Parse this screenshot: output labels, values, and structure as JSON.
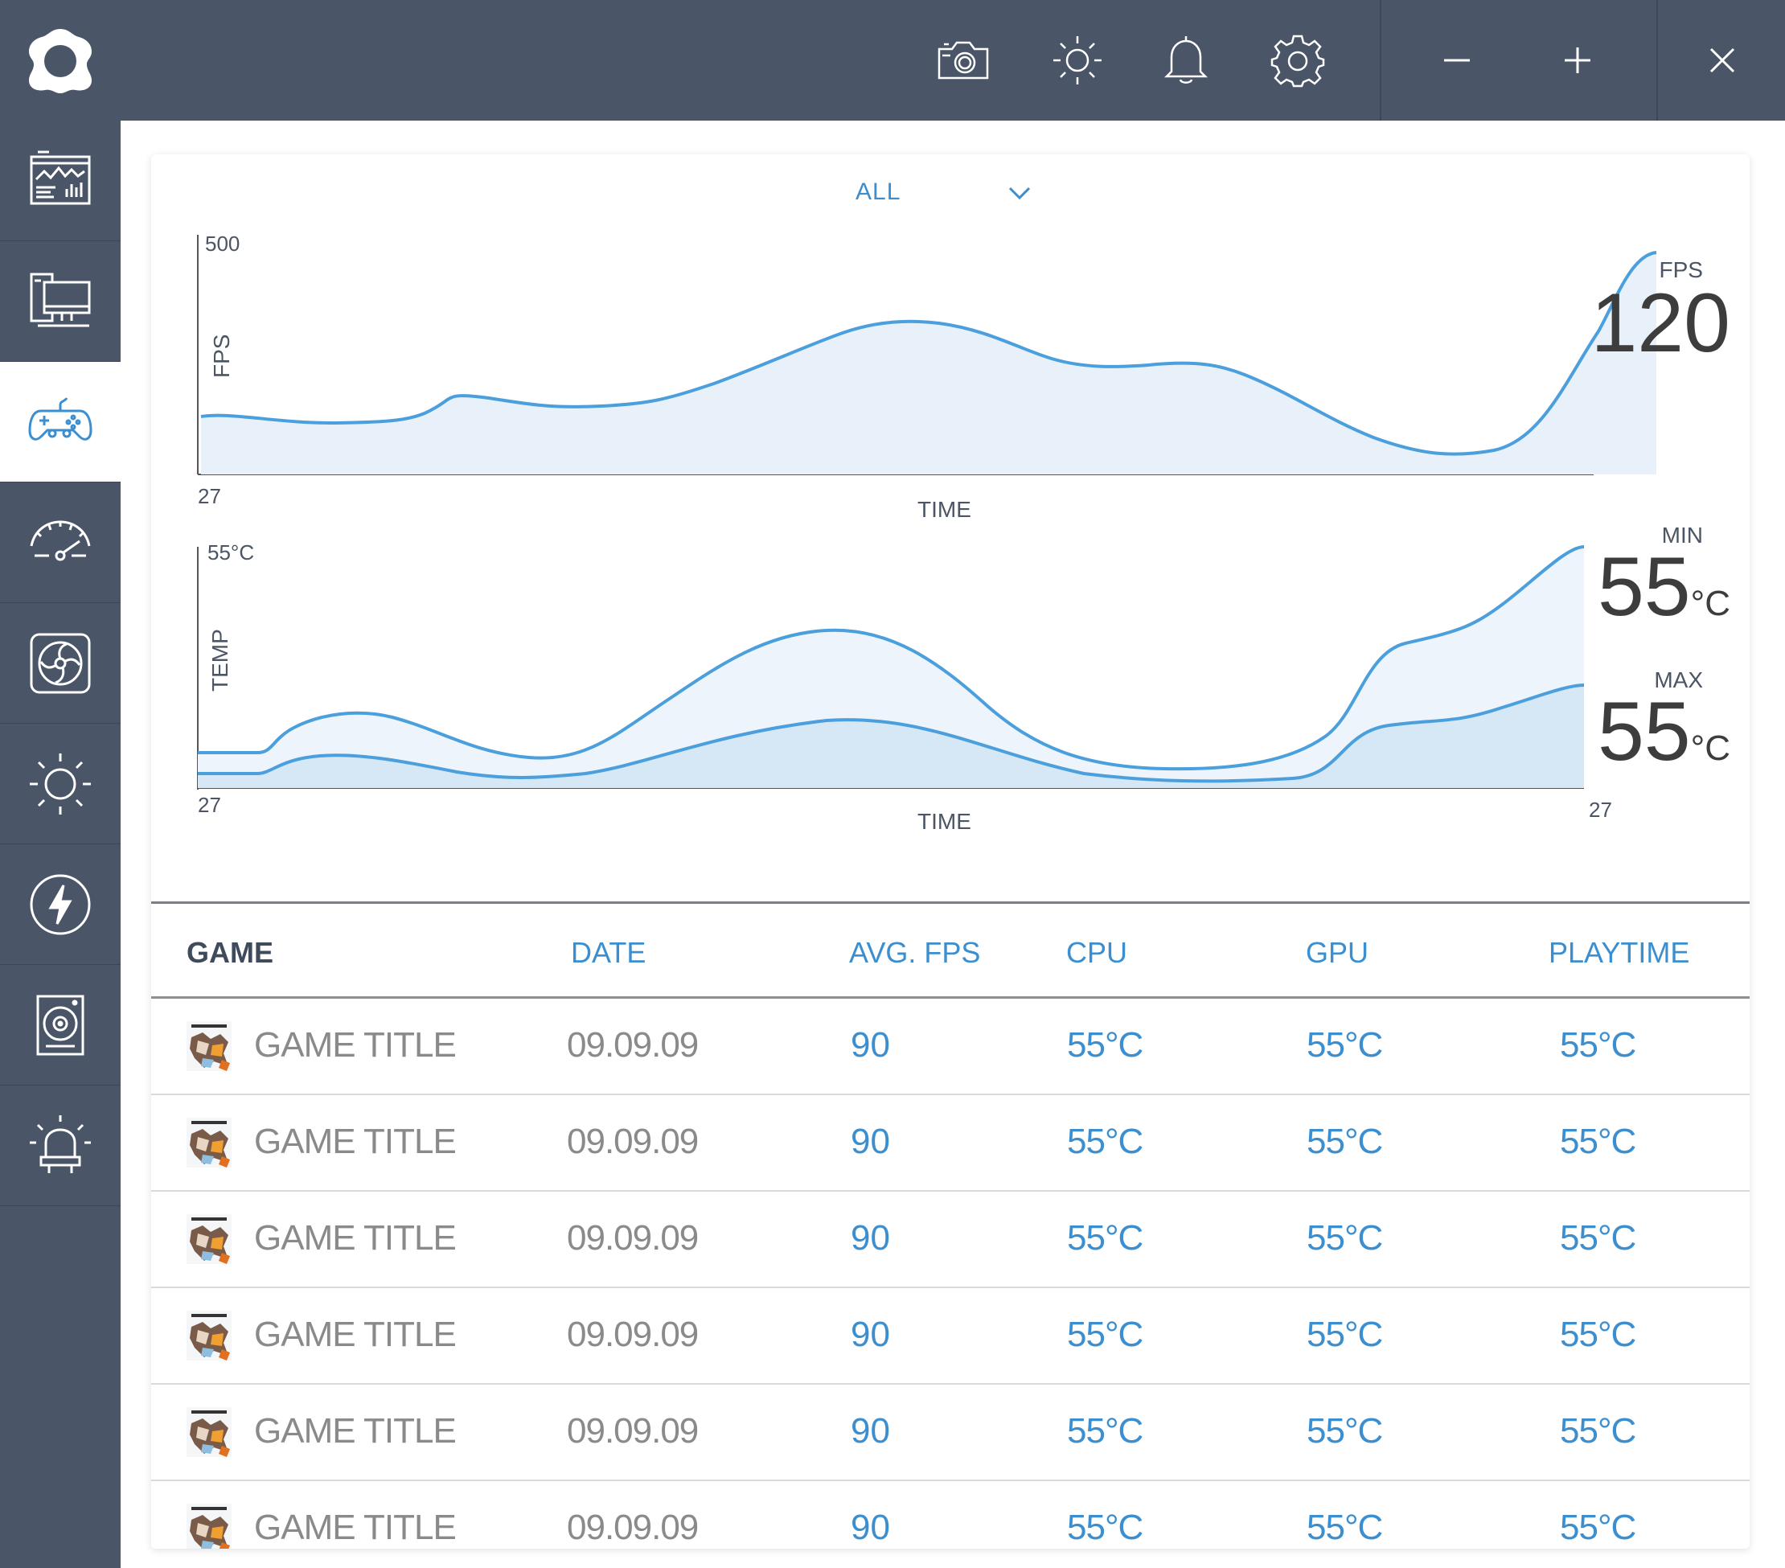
{
  "colors": {
    "sidebar_bg": "#4a5568",
    "accent": "#3b8fd0",
    "chart_line": "#4a9fdc",
    "chart_fill": "#e8f1fa"
  },
  "sidebar": {
    "items": [
      {
        "name": "dashboard",
        "icon": "dashboard-monitor-icon"
      },
      {
        "name": "system",
        "icon": "desktop-computer-icon"
      },
      {
        "name": "games",
        "icon": "gamepad-icon",
        "active": true
      },
      {
        "name": "performance",
        "icon": "speedometer-icon"
      },
      {
        "name": "fans",
        "icon": "fan-icon"
      },
      {
        "name": "lighting",
        "icon": "sun-icon"
      },
      {
        "name": "power",
        "icon": "lightning-icon"
      },
      {
        "name": "audio",
        "icon": "speaker-icon"
      },
      {
        "name": "alerts",
        "icon": "siren-icon"
      }
    ]
  },
  "topbar": {
    "icons": [
      "camera-icon",
      "brightness-icon",
      "bell-icon",
      "gear-icon",
      "minimize-icon",
      "maximize-icon",
      "close-icon"
    ]
  },
  "filter": {
    "label": "ALL"
  },
  "fps_chart": {
    "y_axis_label": "FPS",
    "y_max_label": "500",
    "x_start_label": "27",
    "x_axis_label": "TIME",
    "stat_label": "FPS",
    "stat_value": "120"
  },
  "temp_chart": {
    "y_axis_label": "TEMP",
    "y_max_label": "55°C",
    "x_start_label": "27",
    "x_end_label": "27",
    "x_axis_label": "TIME",
    "min_label": "MIN",
    "min_value": "55",
    "max_label": "MAX",
    "max_value": "55",
    "unit": "°C"
  },
  "table": {
    "headers": [
      "GAME",
      "DATE",
      "AVG. FPS",
      "CPU",
      "GPU",
      "PLAYTIME"
    ],
    "rows": [
      {
        "title": "GAME TITLE",
        "date": "09.09.09",
        "fps": "90",
        "cpu": "55°C",
        "gpu": "55°C",
        "playtime": "55°C"
      },
      {
        "title": "GAME TITLE",
        "date": "09.09.09",
        "fps": "90",
        "cpu": "55°C",
        "gpu": "55°C",
        "playtime": "55°C"
      },
      {
        "title": "GAME TITLE",
        "date": "09.09.09",
        "fps": "90",
        "cpu": "55°C",
        "gpu": "55°C",
        "playtime": "55°C"
      },
      {
        "title": "GAME TITLE",
        "date": "09.09.09",
        "fps": "90",
        "cpu": "55°C",
        "gpu": "55°C",
        "playtime": "55°C"
      },
      {
        "title": "GAME TITLE",
        "date": "09.09.09",
        "fps": "90",
        "cpu": "55°C",
        "gpu": "55°C",
        "playtime": "55°C"
      },
      {
        "title": "GAME TITLE",
        "date": "09.09.09",
        "fps": "90",
        "cpu": "55°C",
        "gpu": "55°C",
        "playtime": "55°C"
      }
    ]
  }
}
